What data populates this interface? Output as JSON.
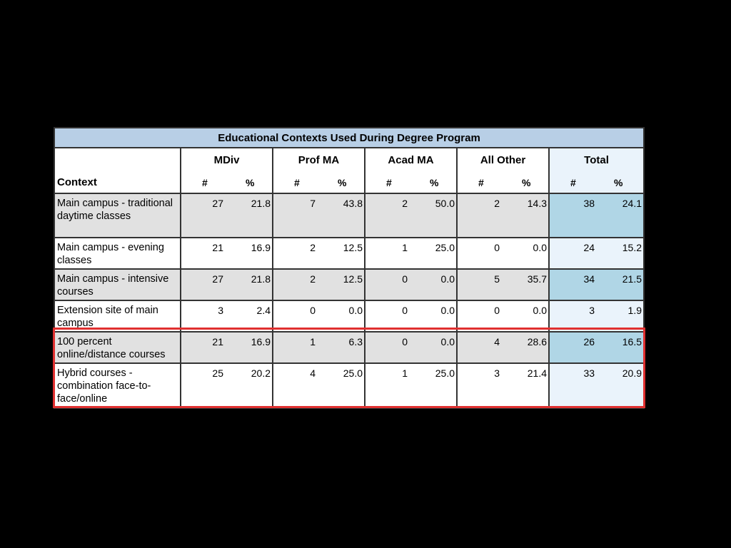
{
  "table": {
    "title": "Educational Contexts Used During Degree Program",
    "context_header": "Context",
    "number_header": "#",
    "percent_header": "%",
    "groups": [
      "MDiv",
      "Prof MA",
      "Acad MA",
      "All Other",
      "Total"
    ],
    "rows": [
      {
        "label": "Main campus - traditional daytime classes",
        "values": [
          [
            "27",
            "21.8"
          ],
          [
            "7",
            "43.8"
          ],
          [
            "2",
            "50.0"
          ],
          [
            "2",
            "14.3"
          ],
          [
            "38",
            "24.1"
          ]
        ]
      },
      {
        "label": "Main campus - evening classes",
        "values": [
          [
            "21",
            "16.9"
          ],
          [
            "2",
            "12.5"
          ],
          [
            "1",
            "25.0"
          ],
          [
            "0",
            "0.0"
          ],
          [
            "24",
            "15.2"
          ]
        ]
      },
      {
        "label": "Main campus - intensive courses",
        "values": [
          [
            "27",
            "21.8"
          ],
          [
            "2",
            "12.5"
          ],
          [
            "0",
            "0.0"
          ],
          [
            "5",
            "35.7"
          ],
          [
            "34",
            "21.5"
          ]
        ]
      },
      {
        "label": "Extension site of main campus",
        "values": [
          [
            "3",
            "2.4"
          ],
          [
            "0",
            "0.0"
          ],
          [
            "0",
            "0.0"
          ],
          [
            "0",
            "0.0"
          ],
          [
            "3",
            "1.9"
          ]
        ]
      },
      {
        "label": "100 percent online/distance courses",
        "values": [
          [
            "21",
            "16.9"
          ],
          [
            "1",
            "6.3"
          ],
          [
            "0",
            "0.0"
          ],
          [
            "4",
            "28.6"
          ],
          [
            "26",
            "16.5"
          ]
        ]
      },
      {
        "label": "Hybrid courses - combination face-to-face/online",
        "values": [
          [
            "25",
            "20.2"
          ],
          [
            "4",
            "25.0"
          ],
          [
            "1",
            "25.0"
          ],
          [
            "3",
            "21.4"
          ],
          [
            "33",
            "20.9"
          ]
        ]
      }
    ]
  },
  "colors": {
    "title_band": "#b8cfe6",
    "shaded_row": "#e1e1e1",
    "total_shaded": "#b0d6e6",
    "total_plain": "#eaf3fb",
    "highlight_border": "#e03030",
    "background": "#000000"
  }
}
